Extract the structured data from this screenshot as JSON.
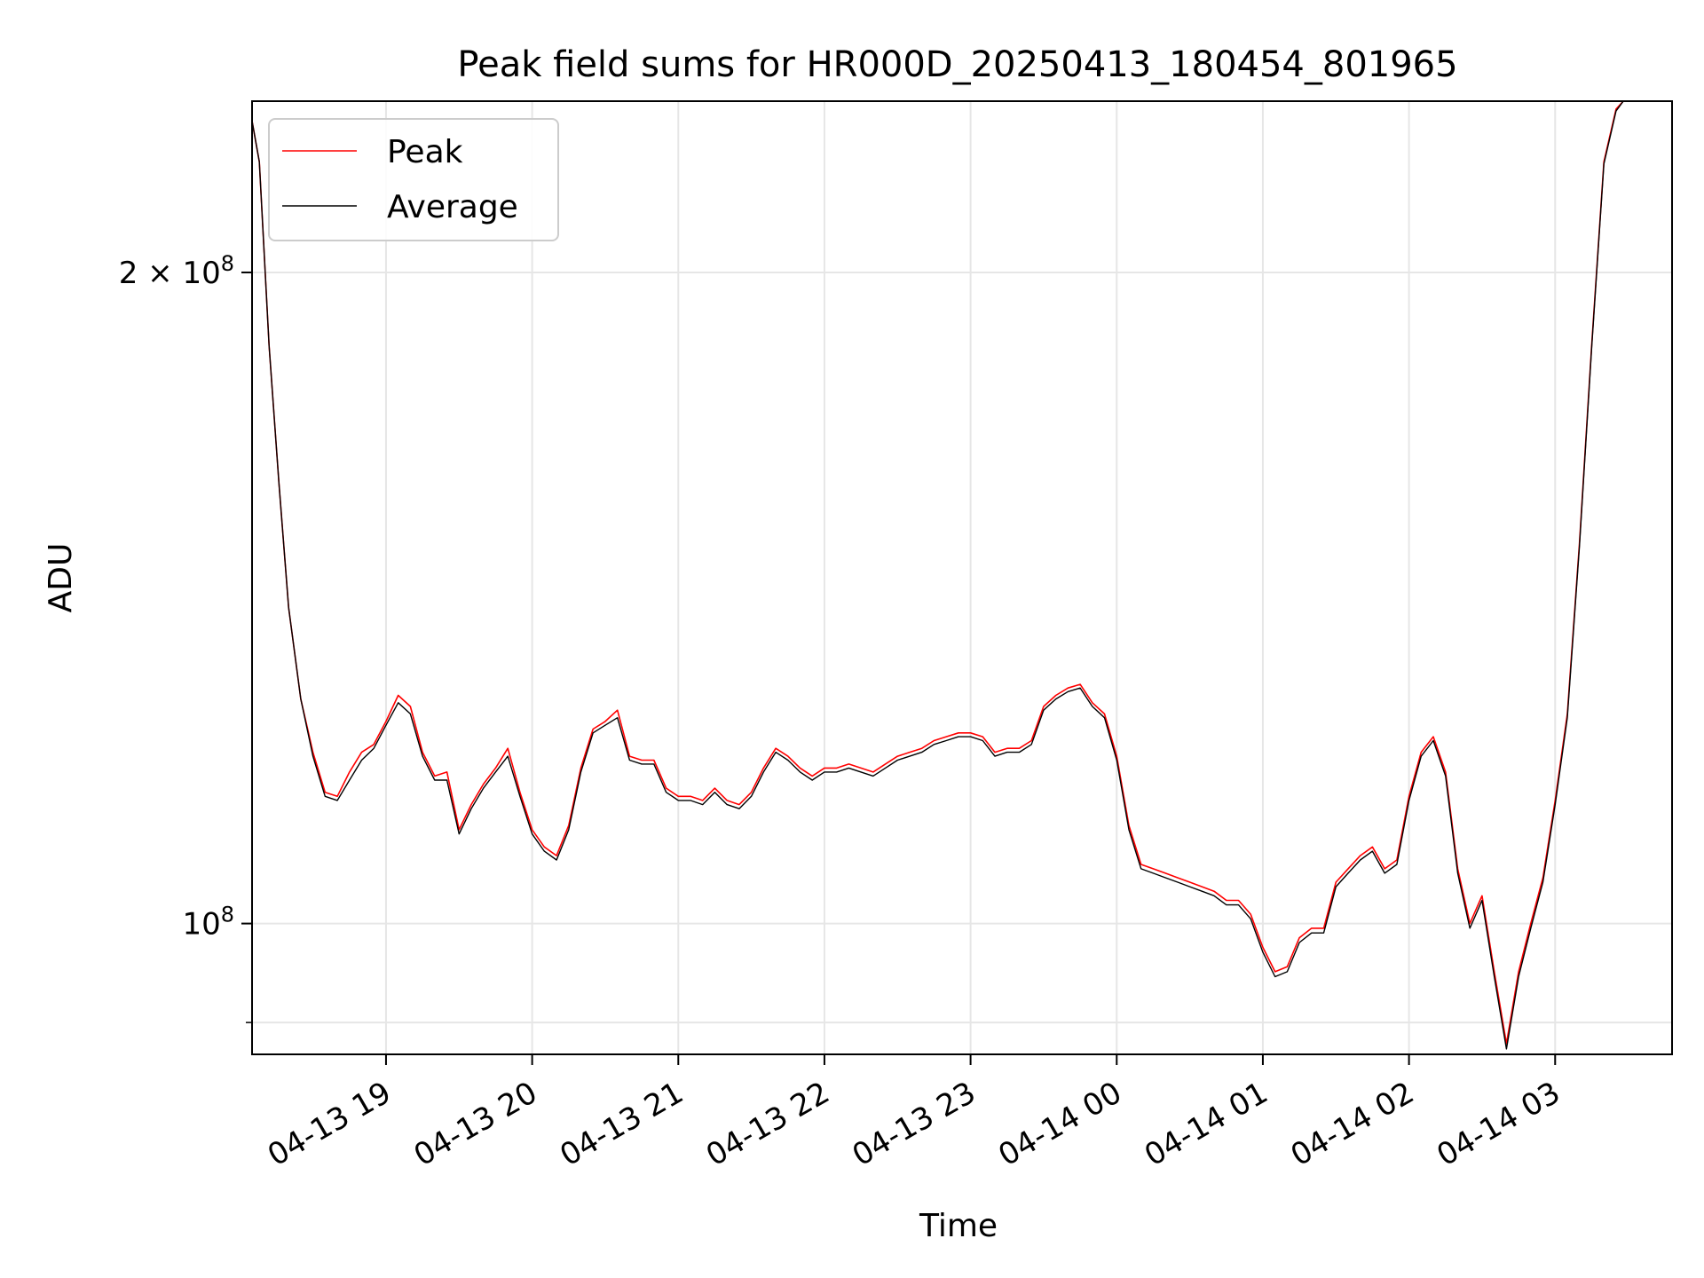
{
  "chart_data": {
    "type": "line",
    "title": "Peak field sums for HR000D_20250413_180454_801965",
    "xlabel": "Time",
    "ylabel": "ADU",
    "y_scale": "log",
    "ylim": [
      87000000,
      240000000
    ],
    "xlim": [
      "2025-04-13 18:05",
      "2025-04-14 03:48"
    ],
    "grid": true,
    "legend_position": "top-left",
    "x_ticks": [
      {
        "t": "2025-04-13 19:00",
        "label": "04-13 19"
      },
      {
        "t": "2025-04-13 20:00",
        "label": "04-13 20"
      },
      {
        "t": "2025-04-13 21:00",
        "label": "04-13 21"
      },
      {
        "t": "2025-04-13 22:00",
        "label": "04-13 22"
      },
      {
        "t": "2025-04-13 23:00",
        "label": "04-13 23"
      },
      {
        "t": "2025-04-14 00:00",
        "label": "04-14 00"
      },
      {
        "t": "2025-04-14 01:00",
        "label": "04-14 01"
      },
      {
        "t": "2025-04-14 02:00",
        "label": "04-14 02"
      },
      {
        "t": "2025-04-14 03:00",
        "label": "04-14 03"
      }
    ],
    "y_ticks": [
      {
        "value": 100000000,
        "base": "10",
        "exp": "8",
        "mult": ""
      },
      {
        "value": 200000000,
        "base": "10",
        "exp": "8",
        "mult": "2 × "
      }
    ],
    "series": [
      {
        "name": "Peak",
        "color": "#ff0000",
        "points": [
          [
            "2025-04-13 18:05",
            235000000
          ],
          [
            "2025-04-13 18:08",
            225000000
          ],
          [
            "2025-04-13 18:12",
            185000000
          ],
          [
            "2025-04-13 18:16",
            160000000
          ],
          [
            "2025-04-13 18:20",
            140000000
          ],
          [
            "2025-04-13 18:25",
            127000000
          ],
          [
            "2025-04-13 18:30",
            120000000
          ],
          [
            "2025-04-13 18:35",
            115000000
          ],
          [
            "2025-04-13 18:40",
            114500000
          ],
          [
            "2025-04-13 18:45",
            117500000
          ],
          [
            "2025-04-13 18:50",
            120000000
          ],
          [
            "2025-04-13 18:55",
            121000000
          ],
          [
            "2025-04-13 19:00",
            124000000
          ],
          [
            "2025-04-13 19:05",
            127500000
          ],
          [
            "2025-04-13 19:10",
            126000000
          ],
          [
            "2025-04-13 19:15",
            120000000
          ],
          [
            "2025-04-13 19:20",
            117000000
          ],
          [
            "2025-04-13 19:25",
            117500000
          ],
          [
            "2025-04-13 19:30",
            110500000
          ],
          [
            "2025-04-13 19:35",
            113500000
          ],
          [
            "2025-04-13 19:40",
            116000000
          ],
          [
            "2025-04-13 19:45",
            118000000
          ],
          [
            "2025-04-13 19:50",
            120500000
          ],
          [
            "2025-04-13 19:55",
            115000000
          ],
          [
            "2025-04-13 20:00",
            110500000
          ],
          [
            "2025-04-13 20:05",
            108500000
          ],
          [
            "2025-04-13 20:10",
            107500000
          ],
          [
            "2025-04-13 20:15",
            111000000
          ],
          [
            "2025-04-13 20:20",
            118000000
          ],
          [
            "2025-04-13 20:25",
            123000000
          ],
          [
            "2025-04-13 20:30",
            124000000
          ],
          [
            "2025-04-13 20:35",
            125500000
          ],
          [
            "2025-04-13 20:40",
            119500000
          ],
          [
            "2025-04-13 20:45",
            119000000
          ],
          [
            "2025-04-13 20:50",
            119000000
          ],
          [
            "2025-04-13 20:55",
            115500000
          ],
          [
            "2025-04-13 21:00",
            114500000
          ],
          [
            "2025-04-13 21:05",
            114500000
          ],
          [
            "2025-04-13 21:10",
            114000000
          ],
          [
            "2025-04-13 21:15",
            115500000
          ],
          [
            "2025-04-13 21:20",
            114000000
          ],
          [
            "2025-04-13 21:25",
            113500000
          ],
          [
            "2025-04-13 21:30",
            115000000
          ],
          [
            "2025-04-13 21:35",
            118000000
          ],
          [
            "2025-04-13 21:40",
            120500000
          ],
          [
            "2025-04-13 21:45",
            119500000
          ],
          [
            "2025-04-13 21:50",
            118000000
          ],
          [
            "2025-04-13 21:55",
            117000000
          ],
          [
            "2025-04-13 22:00",
            118000000
          ],
          [
            "2025-04-13 22:05",
            118000000
          ],
          [
            "2025-04-13 22:10",
            118500000
          ],
          [
            "2025-04-13 22:15",
            118000000
          ],
          [
            "2025-04-13 22:20",
            117500000
          ],
          [
            "2025-04-13 22:25",
            118500000
          ],
          [
            "2025-04-13 22:30",
            119500000
          ],
          [
            "2025-04-13 22:35",
            120000000
          ],
          [
            "2025-04-13 22:40",
            120500000
          ],
          [
            "2025-04-13 22:45",
            121500000
          ],
          [
            "2025-04-13 22:50",
            122000000
          ],
          [
            "2025-04-13 22:55",
            122500000
          ],
          [
            "2025-04-13 23:00",
            122500000
          ],
          [
            "2025-04-13 23:05",
            122000000
          ],
          [
            "2025-04-13 23:10",
            120000000
          ],
          [
            "2025-04-13 23:15",
            120500000
          ],
          [
            "2025-04-13 23:20",
            120500000
          ],
          [
            "2025-04-13 23:25",
            121500000
          ],
          [
            "2025-04-13 23:30",
            126000000
          ],
          [
            "2025-04-13 23:35",
            127500000
          ],
          [
            "2025-04-13 23:40",
            128500000
          ],
          [
            "2025-04-13 23:45",
            129000000
          ],
          [
            "2025-04-13 23:50",
            126500000
          ],
          [
            "2025-04-13 23:55",
            125000000
          ],
          [
            "2025-04-14 00:00",
            119500000
          ],
          [
            "2025-04-14 00:05",
            111000000
          ],
          [
            "2025-04-14 00:10",
            106500000
          ],
          [
            "2025-04-14 00:15",
            106000000
          ],
          [
            "2025-04-14 00:20",
            105500000
          ],
          [
            "2025-04-14 00:25",
            105000000
          ],
          [
            "2025-04-14 00:30",
            104500000
          ],
          [
            "2025-04-14 00:35",
            104000000
          ],
          [
            "2025-04-14 00:40",
            103500000
          ],
          [
            "2025-04-14 00:45",
            102500000
          ],
          [
            "2025-04-14 00:50",
            102500000
          ],
          [
            "2025-04-14 00:55",
            101000000
          ],
          [
            "2025-04-14 01:00",
            97500000
          ],
          [
            "2025-04-14 01:05",
            95000000
          ],
          [
            "2025-04-14 01:10",
            95500000
          ],
          [
            "2025-04-14 01:15",
            98500000
          ],
          [
            "2025-04-14 01:20",
            99500000
          ],
          [
            "2025-04-14 01:25",
            99500000
          ],
          [
            "2025-04-14 01:30",
            104500000
          ],
          [
            "2025-04-14 01:35",
            106000000
          ],
          [
            "2025-04-14 01:40",
            107500000
          ],
          [
            "2025-04-14 01:45",
            108500000
          ],
          [
            "2025-04-14 01:50",
            106000000
          ],
          [
            "2025-04-14 01:55",
            107000000
          ],
          [
            "2025-04-14 02:00",
            114500000
          ],
          [
            "2025-04-14 02:05",
            120000000
          ],
          [
            "2025-04-14 02:10",
            122000000
          ],
          [
            "2025-04-14 02:15",
            117500000
          ],
          [
            "2025-04-14 02:20",
            106000000
          ],
          [
            "2025-04-14 02:25",
            100000000
          ],
          [
            "2025-04-14 02:30",
            103000000
          ],
          [
            "2025-04-14 02:35",
            95000000
          ],
          [
            "2025-04-14 02:40",
            88000000
          ],
          [
            "2025-04-14 02:45",
            95000000
          ],
          [
            "2025-04-14 02:50",
            100000000
          ],
          [
            "2025-04-14 02:55",
            105000000
          ],
          [
            "2025-04-14 03:00",
            114000000
          ],
          [
            "2025-04-14 03:05",
            125000000
          ],
          [
            "2025-04-14 03:10",
            150000000
          ],
          [
            "2025-04-14 03:15",
            185000000
          ],
          [
            "2025-04-14 03:20",
            225000000
          ],
          [
            "2025-04-14 03:25",
            238000000
          ],
          [
            "2025-04-14 03:28",
            240000000
          ]
        ]
      },
      {
        "name": "Average",
        "color": "#000000",
        "points": [
          [
            "2025-04-13 18:05",
            235000000
          ],
          [
            "2025-04-13 18:08",
            225000000
          ],
          [
            "2025-04-13 18:12",
            185000000
          ],
          [
            "2025-04-13 18:16",
            160000000
          ],
          [
            "2025-04-13 18:20",
            140000000
          ],
          [
            "2025-04-13 18:25",
            127000000
          ],
          [
            "2025-04-13 18:30",
            119500000
          ],
          [
            "2025-04-13 18:35",
            114500000
          ],
          [
            "2025-04-13 18:40",
            114000000
          ],
          [
            "2025-04-13 18:45",
            116500000
          ],
          [
            "2025-04-13 18:50",
            119000000
          ],
          [
            "2025-04-13 18:55",
            120500000
          ],
          [
            "2025-04-13 19:00",
            123500000
          ],
          [
            "2025-04-13 19:05",
            126500000
          ],
          [
            "2025-04-13 19:10",
            125000000
          ],
          [
            "2025-04-13 19:15",
            119500000
          ],
          [
            "2025-04-13 19:20",
            116500000
          ],
          [
            "2025-04-13 19:25",
            116500000
          ],
          [
            "2025-04-13 19:30",
            110000000
          ],
          [
            "2025-04-13 19:35",
            113000000
          ],
          [
            "2025-04-13 19:40",
            115500000
          ],
          [
            "2025-04-13 19:45",
            117500000
          ],
          [
            "2025-04-13 19:50",
            119500000
          ],
          [
            "2025-04-13 19:55",
            114500000
          ],
          [
            "2025-04-13 20:00",
            110000000
          ],
          [
            "2025-04-13 20:05",
            108000000
          ],
          [
            "2025-04-13 20:10",
            107000000
          ],
          [
            "2025-04-13 20:15",
            110500000
          ],
          [
            "2025-04-13 20:20",
            117500000
          ],
          [
            "2025-04-13 20:25",
            122500000
          ],
          [
            "2025-04-13 20:30",
            123500000
          ],
          [
            "2025-04-13 20:35",
            124500000
          ],
          [
            "2025-04-13 20:40",
            119000000
          ],
          [
            "2025-04-13 20:45",
            118500000
          ],
          [
            "2025-04-13 20:50",
            118500000
          ],
          [
            "2025-04-13 20:55",
            115000000
          ],
          [
            "2025-04-13 21:00",
            114000000
          ],
          [
            "2025-04-13 21:05",
            114000000
          ],
          [
            "2025-04-13 21:10",
            113500000
          ],
          [
            "2025-04-13 21:15",
            115000000
          ],
          [
            "2025-04-13 21:20",
            113500000
          ],
          [
            "2025-04-13 21:25",
            113000000
          ],
          [
            "2025-04-13 21:30",
            114500000
          ],
          [
            "2025-04-13 21:35",
            117500000
          ],
          [
            "2025-04-13 21:40",
            120000000
          ],
          [
            "2025-04-13 21:45",
            119000000
          ],
          [
            "2025-04-13 21:50",
            117500000
          ],
          [
            "2025-04-13 21:55",
            116500000
          ],
          [
            "2025-04-13 22:00",
            117500000
          ],
          [
            "2025-04-13 22:05",
            117500000
          ],
          [
            "2025-04-13 22:10",
            118000000
          ],
          [
            "2025-04-13 22:15",
            117500000
          ],
          [
            "2025-04-13 22:20",
            117000000
          ],
          [
            "2025-04-13 22:25",
            118000000
          ],
          [
            "2025-04-13 22:30",
            119000000
          ],
          [
            "2025-04-13 22:35",
            119500000
          ],
          [
            "2025-04-13 22:40",
            120000000
          ],
          [
            "2025-04-13 22:45",
            121000000
          ],
          [
            "2025-04-13 22:50",
            121500000
          ],
          [
            "2025-04-13 22:55",
            122000000
          ],
          [
            "2025-04-13 23:00",
            122000000
          ],
          [
            "2025-04-13 23:05",
            121500000
          ],
          [
            "2025-04-13 23:10",
            119500000
          ],
          [
            "2025-04-13 23:15",
            120000000
          ],
          [
            "2025-04-13 23:20",
            120000000
          ],
          [
            "2025-04-13 23:25",
            121000000
          ],
          [
            "2025-04-13 23:30",
            125500000
          ],
          [
            "2025-04-13 23:35",
            127000000
          ],
          [
            "2025-04-13 23:40",
            128000000
          ],
          [
            "2025-04-13 23:45",
            128500000
          ],
          [
            "2025-04-13 23:50",
            126000000
          ],
          [
            "2025-04-13 23:55",
            124500000
          ],
          [
            "2025-04-14 00:00",
            119000000
          ],
          [
            "2025-04-14 00:05",
            110500000
          ],
          [
            "2025-04-14 00:10",
            106000000
          ],
          [
            "2025-04-14 00:15",
            105500000
          ],
          [
            "2025-04-14 00:20",
            105000000
          ],
          [
            "2025-04-14 00:25",
            104500000
          ],
          [
            "2025-04-14 00:30",
            104000000
          ],
          [
            "2025-04-14 00:35",
            103500000
          ],
          [
            "2025-04-14 00:40",
            103000000
          ],
          [
            "2025-04-14 00:45",
            102000000
          ],
          [
            "2025-04-14 00:50",
            102000000
          ],
          [
            "2025-04-14 00:55",
            100500000
          ],
          [
            "2025-04-14 01:00",
            97000000
          ],
          [
            "2025-04-14 01:05",
            94500000
          ],
          [
            "2025-04-14 01:10",
            95000000
          ],
          [
            "2025-04-14 01:15",
            98000000
          ],
          [
            "2025-04-14 01:20",
            99000000
          ],
          [
            "2025-04-14 01:25",
            99000000
          ],
          [
            "2025-04-14 01:30",
            104000000
          ],
          [
            "2025-04-14 01:35",
            105500000
          ],
          [
            "2025-04-14 01:40",
            107000000
          ],
          [
            "2025-04-14 01:45",
            108000000
          ],
          [
            "2025-04-14 01:50",
            105500000
          ],
          [
            "2025-04-14 01:55",
            106500000
          ],
          [
            "2025-04-14 02:00",
            114000000
          ],
          [
            "2025-04-14 02:05",
            119500000
          ],
          [
            "2025-04-14 02:10",
            121500000
          ],
          [
            "2025-04-14 02:15",
            117000000
          ],
          [
            "2025-04-14 02:20",
            105500000
          ],
          [
            "2025-04-14 02:25",
            99500000
          ],
          [
            "2025-04-14 02:30",
            102500000
          ],
          [
            "2025-04-14 02:35",
            94500000
          ],
          [
            "2025-04-14 02:40",
            87500000
          ],
          [
            "2025-04-14 02:45",
            94500000
          ],
          [
            "2025-04-14 02:50",
            99500000
          ],
          [
            "2025-04-14 02:55",
            104500000
          ],
          [
            "2025-04-14 03:00",
            113500000
          ],
          [
            "2025-04-14 03:05",
            124500000
          ],
          [
            "2025-04-14 03:10",
            149500000
          ],
          [
            "2025-04-14 03:15",
            184500000
          ],
          [
            "2025-04-14 03:20",
            224500000
          ],
          [
            "2025-04-14 03:25",
            237500000
          ],
          [
            "2025-04-14 03:28",
            240000000
          ]
        ]
      }
    ]
  }
}
